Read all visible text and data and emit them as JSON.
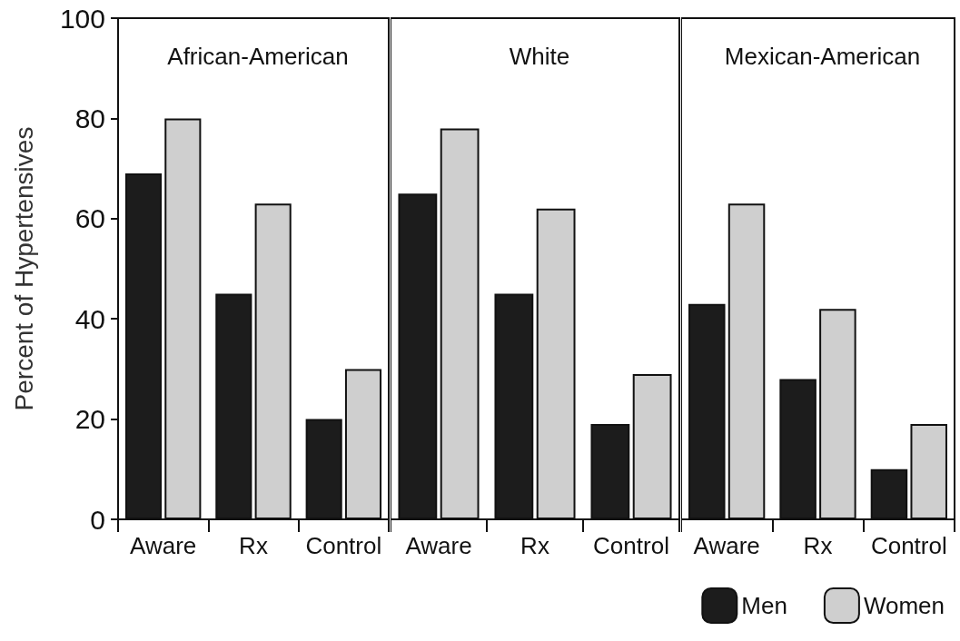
{
  "chart_data": [
    {
      "type": "bar",
      "title": "African-American",
      "ylabel": "Percent of Hypertensives",
      "categories": [
        "Aware",
        "Rx",
        "Control"
      ],
      "ylim": [
        0,
        100
      ],
      "yticks": [
        0,
        20,
        40,
        60,
        80,
        100
      ],
      "grid": false,
      "legend": false,
      "series": [
        {
          "color": "#1c1c1c",
          "values": [
            69,
            45,
            20
          ]
        },
        {
          "color": "#cfcfcf",
          "values": [
            80,
            63,
            30
          ]
        }
      ]
    },
    {
      "type": "bar",
      "title": "White",
      "categories": [
        "Aware",
        "Rx",
        "Control"
      ],
      "ylim": [
        0,
        100
      ],
      "yticks": [
        0,
        20,
        40,
        60,
        80,
        100
      ],
      "grid": false,
      "legend": false,
      "tick_labels": "x",
      "series": [
        {
          "color": "#1c1c1c",
          "values": [
            65,
            45,
            19
          ]
        },
        {
          "color": "#cfcfcf",
          "values": [
            78,
            62,
            29
          ]
        }
      ]
    },
    {
      "type": "bar",
      "title": "Mexican-American",
      "categories": [
        "Aware",
        "Rx",
        "Control"
      ],
      "ylim": [
        0,
        100
      ],
      "yticks": [
        0,
        20,
        40,
        60,
        80,
        100
      ],
      "grid": false,
      "legend": "bottom right",
      "tick_labels": "x",
      "series": [
        {
          "name": "Men",
          "color": "#1c1c1c",
          "values": [
            43,
            28,
            10
          ]
        },
        {
          "name": "Women",
          "color": "#cfcfcf",
          "values": [
            63,
            42,
            19
          ]
        }
      ]
    }
  ]
}
